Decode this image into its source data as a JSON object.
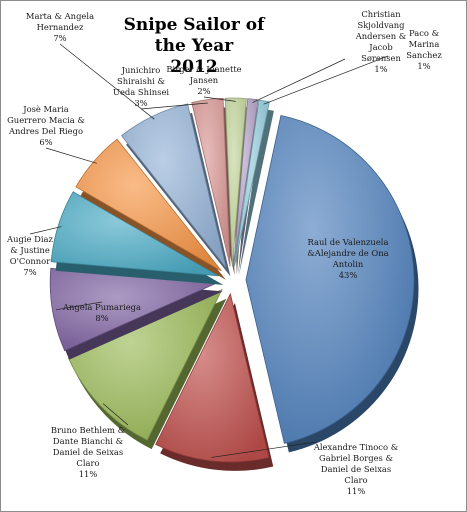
{
  "chart_data": {
    "type": "pie",
    "title_lines": [
      "Snipe Sailor of the Year",
      "2012"
    ],
    "slices": [
      {
        "label_lines": [
          "Raul de Valenzuela",
          "&Alejandre de Ona",
          "Antolin"
        ],
        "pct_label": "43%",
        "value": 43,
        "color": "#4f81bd"
      },
      {
        "label_lines": [
          "Alexandre Tinoco &",
          "Gabriel Borges &",
          "Daniel de Seixas",
          "Claro"
        ],
        "pct_label": "11%",
        "value": 11,
        "color": "#c0504d"
      },
      {
        "label_lines": [
          "Bruno Bethlem &",
          "Dante Bianchi &",
          "Daniel de Seixas",
          "Claro"
        ],
        "pct_label": "11%",
        "value": 11,
        "color": "#9bbb59"
      },
      {
        "label_lines": [
          "Angela Pumariega"
        ],
        "pct_label": "8%",
        "value": 8,
        "color": "#8064a2"
      },
      {
        "label_lines": [
          "Augie Diaz",
          "& Justine",
          "O'Connor"
        ],
        "pct_label": "7%",
        "value": 7,
        "color": "#4bacc6"
      },
      {
        "label_lines": [
          "Josè Maria",
          "Guerrero Macia &",
          "Andres Del Riego"
        ],
        "pct_label": "6%",
        "value": 6,
        "color": "#f79646"
      },
      {
        "label_lines": [
          "Marta & Angela",
          "Hernandez"
        ],
        "pct_label": "7%",
        "value": 7,
        "color": "#95b3d7"
      },
      {
        "label_lines": [
          "Junichiro",
          "Shiraishi &",
          "Ueda Shinsei"
        ],
        "pct_label": "3%",
        "value": 3,
        "color": "#d99694"
      },
      {
        "label_lines": [
          "Birger & Jeanette",
          "Jansen"
        ],
        "pct_label": "2%",
        "value": 2,
        "color": "#c3d69b"
      },
      {
        "label_lines": [
          "Christian",
          "Skjoldvang",
          "Andersen &",
          "Jacob",
          "Sørensen"
        ],
        "pct_label": "1%",
        "value": 1,
        "color": "#b2a1c7"
      },
      {
        "label_lines": [
          "Paco &",
          "Marina",
          "Sanchez"
        ],
        "pct_label": "1%",
        "value": 1,
        "color": "#93cddd"
      }
    ]
  }
}
